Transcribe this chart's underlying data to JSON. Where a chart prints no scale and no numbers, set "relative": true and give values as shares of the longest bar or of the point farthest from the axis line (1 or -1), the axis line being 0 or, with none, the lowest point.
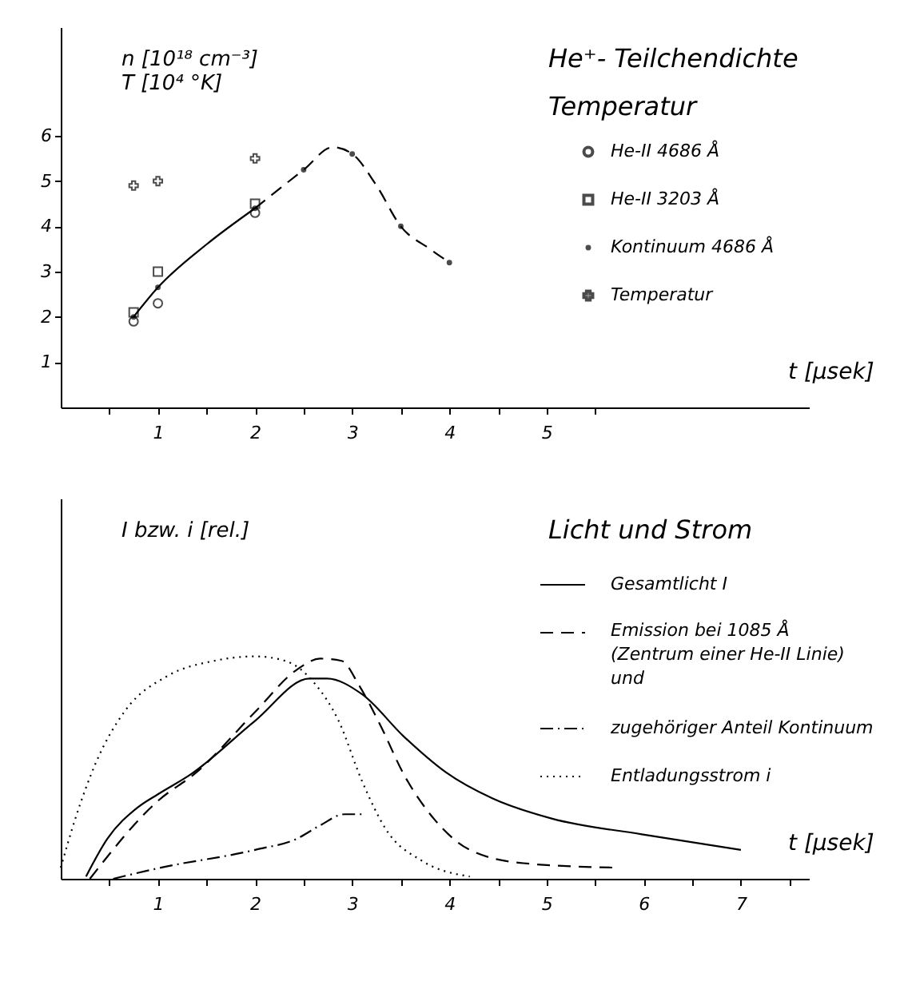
{
  "chart_data": [
    {
      "type": "scatter",
      "title": "He⁺- Teilchendichte",
      "subtitle": "Temperatur",
      "ylabel": "n  [10¹⁸ cm⁻³]\nT  [10⁴ °K]",
      "xlabel": "t  [μsek]",
      "xlim": [
        0,
        7.7
      ],
      "xticks": [
        {
          "value": 0.5,
          "label": null
        },
        1,
        {
          "value": 1.5,
          "label": null
        },
        2,
        {
          "value": 2.5,
          "label": null
        },
        3,
        {
          "value": 3.5,
          "label": null
        },
        4,
        {
          "value": 4.5,
          "label": null
        },
        5,
        {
          "value": 5.5,
          "label": null
        }
      ],
      "ylim": [
        0,
        8.4
      ],
      "yticks": [
        1,
        2,
        3,
        4,
        5,
        6
      ],
      "grid": false,
      "legend": "right",
      "series": [
        {
          "name": "He-II  4686 Å",
          "type": "scatter",
          "marker": "circle",
          "color": "#000000",
          "x": [
            0.75,
            1.0,
            2.0
          ],
          "values": [
            1.9,
            2.3,
            4.3
          ]
        },
        {
          "name": "He-II  3203 Å",
          "type": "scatter",
          "marker": "square",
          "color": "#000000",
          "x": [
            0.75,
            1.0,
            2.0
          ],
          "values": [
            2.1,
            3.0,
            4.5
          ]
        },
        {
          "name": "Kontinuum   4686 Å",
          "type": "scatter",
          "marker": "dot",
          "color": "#000000",
          "x": [
            0.75,
            1.0,
            2.0,
            2.5,
            3.0,
            3.5,
            4.0
          ],
          "values": [
            2.0,
            2.65,
            4.4,
            5.25,
            5.6,
            4.0,
            3.2
          ]
        },
        {
          "name": "Temperatur",
          "type": "scatter",
          "marker": "cross",
          "color": "#000000",
          "x": [
            0.75,
            1.0,
            2.0
          ],
          "values": [
            4.9,
            5.0,
            5.5
          ]
        },
        {
          "type": "line",
          "line_style": "solid",
          "color": "#000000",
          "x": [
            0.75,
            1.0,
            1.5,
            2.0
          ],
          "values": [
            2.0,
            2.65,
            3.6,
            4.4
          ]
        },
        {
          "type": "line",
          "line_style": "dashed",
          "color": "#000000",
          "x": [
            2.0,
            2.5,
            2.8,
            3.0,
            3.25,
            3.5,
            3.8,
            4.0
          ],
          "values": [
            4.4,
            5.25,
            5.75,
            5.6,
            4.9,
            4.0,
            3.5,
            3.2
          ]
        }
      ]
    },
    {
      "type": "line",
      "title": "Licht und Strom",
      "ylabel": "I  bzw.  i  [rel.]",
      "xlabel": "t  [μsek]",
      "relative": true,
      "tick_labels": "x",
      "xlim": [
        0,
        7.7
      ],
      "xticks": [
        {
          "value": 0.5,
          "label": null
        },
        1,
        {
          "value": 1.5,
          "label": null
        },
        2,
        {
          "value": 2.5,
          "label": null
        },
        3,
        {
          "value": 3.5,
          "label": null
        },
        4,
        {
          "value": 4.5,
          "label": null
        },
        5,
        {
          "value": 5.5,
          "label": null
        },
        6,
        {
          "value": 6.5,
          "label": null
        },
        7,
        {
          "value": 7.5,
          "label": null
        }
      ],
      "grid": false,
      "legend": "top right",
      "series": [
        {
          "name": "Gesamtlicht  I",
          "line_style": "solid",
          "color": "#000000",
          "x": [
            0.26,
            0.48,
            0.79,
            1.0,
            1.34,
            2.0,
            2.56,
            2.74,
            3.1,
            3.53,
            3.96,
            4.45,
            5.06,
            5.98,
            7.0
          ],
          "values": [
            0.01,
            0.18,
            0.32,
            0.38,
            0.47,
            0.71,
            0.9,
            0.9,
            0.83,
            0.64,
            0.48,
            0.36,
            0.27,
            0.2,
            0.13
          ]
        },
        {
          "name": "Emission bei 1085 Å\n(Zentrum einer He-II Linie)\nund",
          "line_style": "dashed",
          "color": "#000000",
          "x": [
            0.3,
            1.0,
            1.4,
            2.0,
            2.43,
            2.67,
            2.89,
            3.07,
            3.29,
            3.53,
            3.84,
            4.21,
            4.76,
            5.7
          ],
          "values": [
            0.0,
            0.35,
            0.48,
            0.75,
            0.94,
            0.99,
            0.98,
            0.87,
            0.69,
            0.47,
            0.27,
            0.13,
            0.07,
            0.05
          ]
        },
        {
          "name": "zugehöriger Anteil Kontinuum",
          "line_style": "dashdot",
          "color": "#000000",
          "x": [
            0.54,
            1.03,
            2.0,
            2.43,
            2.67,
            2.92,
            3.1
          ],
          "values": [
            0.0,
            0.05,
            0.13,
            0.18,
            0.24,
            0.29,
            0.29
          ]
        },
        {
          "name": "Entladungsstrom  i",
          "line_style": "dotted",
          "color": "#000000",
          "x": [
            0.0,
            0.15,
            0.36,
            0.67,
            1.09,
            1.58,
            2.0,
            2.31,
            2.61,
            2.86,
            3.1,
            3.35,
            3.72,
            4.21
          ],
          "values": [
            0.05,
            0.27,
            0.52,
            0.76,
            0.91,
            0.98,
            1.0,
            0.98,
            0.88,
            0.71,
            0.44,
            0.22,
            0.08,
            0.01
          ]
        }
      ]
    }
  ]
}
